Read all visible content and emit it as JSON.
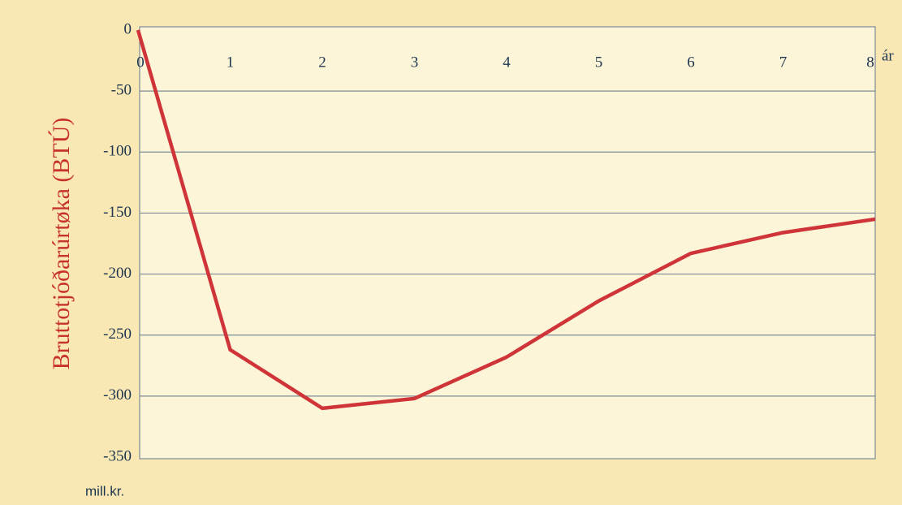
{
  "chart_data": {
    "type": "line",
    "y_label": "Bruttotjóðarúrtøka (BTÚ)",
    "y_unit": "mill.kr.",
    "x_unit": "ár",
    "x": [
      0,
      1,
      2,
      3,
      4,
      5,
      6,
      7,
      8
    ],
    "series": [
      {
        "color": "#cf3438",
        "values": [
          0,
          -262,
          -310,
          -302,
          -268,
          -222,
          -183,
          -166,
          -155
        ]
      }
    ],
    "xlim": [
      0,
      8
    ],
    "xticks": [
      0,
      1,
      2,
      3,
      4,
      5,
      6,
      7,
      8
    ],
    "ylim": [
      -350,
      0
    ],
    "yticks": [
      0,
      -50,
      -100,
      -150,
      -200,
      -250,
      -300,
      -350
    ],
    "grid": true
  }
}
